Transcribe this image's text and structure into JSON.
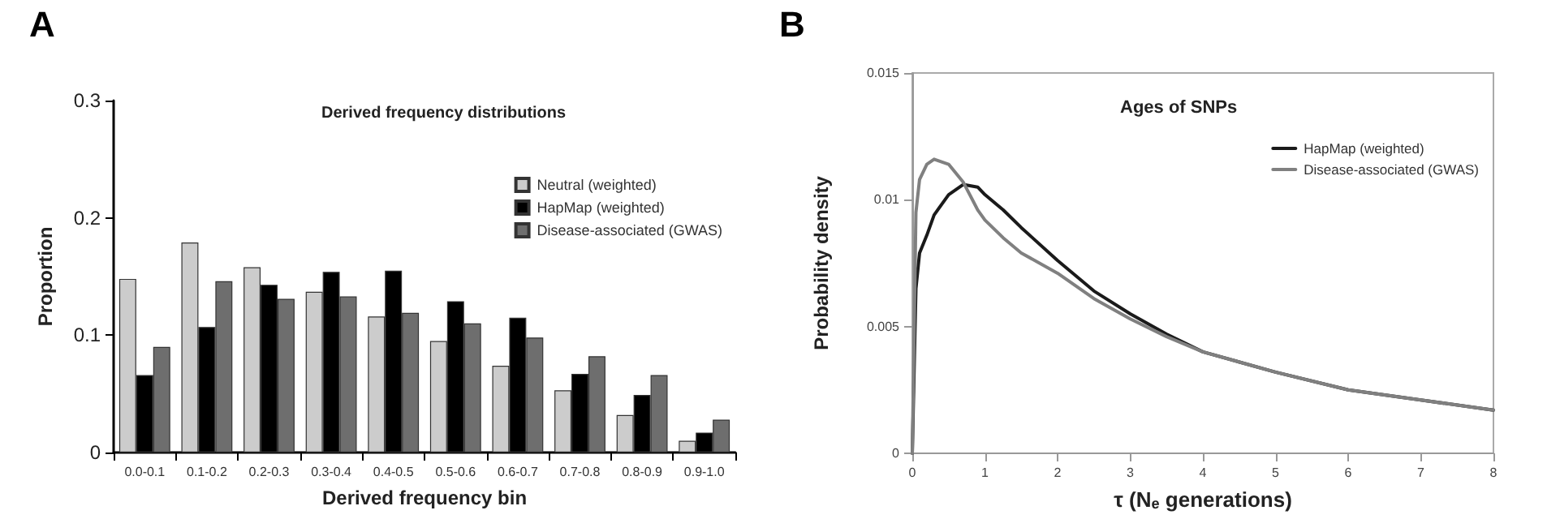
{
  "chart_data": [
    {
      "type": "bar",
      "title": "Derived frequency distributions",
      "xlabel": "Derived frequency bin",
      "ylabel": "Proportion",
      "annotations": [
        "A"
      ],
      "categories": [
        "0.0-0.1",
        "0.1-0.2",
        "0.2-0.3",
        "0.3-0.4",
        "0.4-0.5",
        "0.5-0.6",
        "0.6-0.7",
        "0.7-0.8",
        "0.8-0.9",
        "0.9-1.0"
      ],
      "series": [
        {
          "name": "Neutral (weighted)",
          "color": "#cccccc",
          "values": [
            0.148,
            0.179,
            0.158,
            0.137,
            0.116,
            0.095,
            0.074,
            0.053,
            0.032,
            0.01
          ]
        },
        {
          "name": "HapMap (weighted)",
          "color": "#000000",
          "values": [
            0.066,
            0.107,
            0.143,
            0.154,
            0.155,
            0.129,
            0.115,
            0.067,
            0.049,
            0.017
          ]
        },
        {
          "name": "Disease-associated (GWAS)",
          "color": "#6e6e6e",
          "values": [
            0.09,
            0.146,
            0.131,
            0.133,
            0.119,
            0.11,
            0.098,
            0.082,
            0.066,
            0.028
          ]
        }
      ],
      "ylim": [
        0,
        0.3
      ],
      "yticks": [
        0,
        0.1,
        0.2,
        0.3
      ],
      "grid": false,
      "legend": "top right"
    },
    {
      "type": "line",
      "title": "Ages of SNPs",
      "xlabel": "τ (N$_{e}$ generations)",
      "ylabel": "Probability density",
      "annotations": [
        "B"
      ],
      "x": [
        0,
        0.05,
        0.1,
        0.2,
        0.3,
        0.5,
        0.7,
        0.9,
        1.0,
        1.25,
        1.5,
        2,
        2.5,
        3,
        3.5,
        4,
        5,
        6,
        7,
        8
      ],
      "series": [
        {
          "name": "HapMap (weighted)",
          "color": "#1a1a1a",
          "values": [
            0,
            0.0065,
            0.0079,
            0.0086,
            0.0094,
            0.0102,
            0.0106,
            0.0105,
            0.0102,
            0.0096,
            0.0089,
            0.0076,
            0.0064,
            0.0055,
            0.0047,
            0.004,
            0.0032,
            0.0025,
            0.0021,
            0.0017
          ]
        },
        {
          "name": "Disease-associated (GWAS)",
          "color": "#808080",
          "values": [
            0,
            0.0095,
            0.0108,
            0.0114,
            0.0116,
            0.0114,
            0.0107,
            0.0096,
            0.0092,
            0.0085,
            0.0079,
            0.0071,
            0.0061,
            0.0053,
            0.0046,
            0.004,
            0.0032,
            0.0025,
            0.0021,
            0.0017
          ]
        }
      ],
      "xlim": [
        0,
        8
      ],
      "xticks": [
        0,
        1,
        2,
        3,
        4,
        5,
        6,
        7,
        8
      ],
      "ylim": [
        0,
        0.015
      ],
      "yticks": [
        0,
        0.005,
        0.01,
        0.015
      ],
      "grid": false,
      "legend": "top right",
      "marker": "none",
      "line_style": "solid"
    }
  ]
}
